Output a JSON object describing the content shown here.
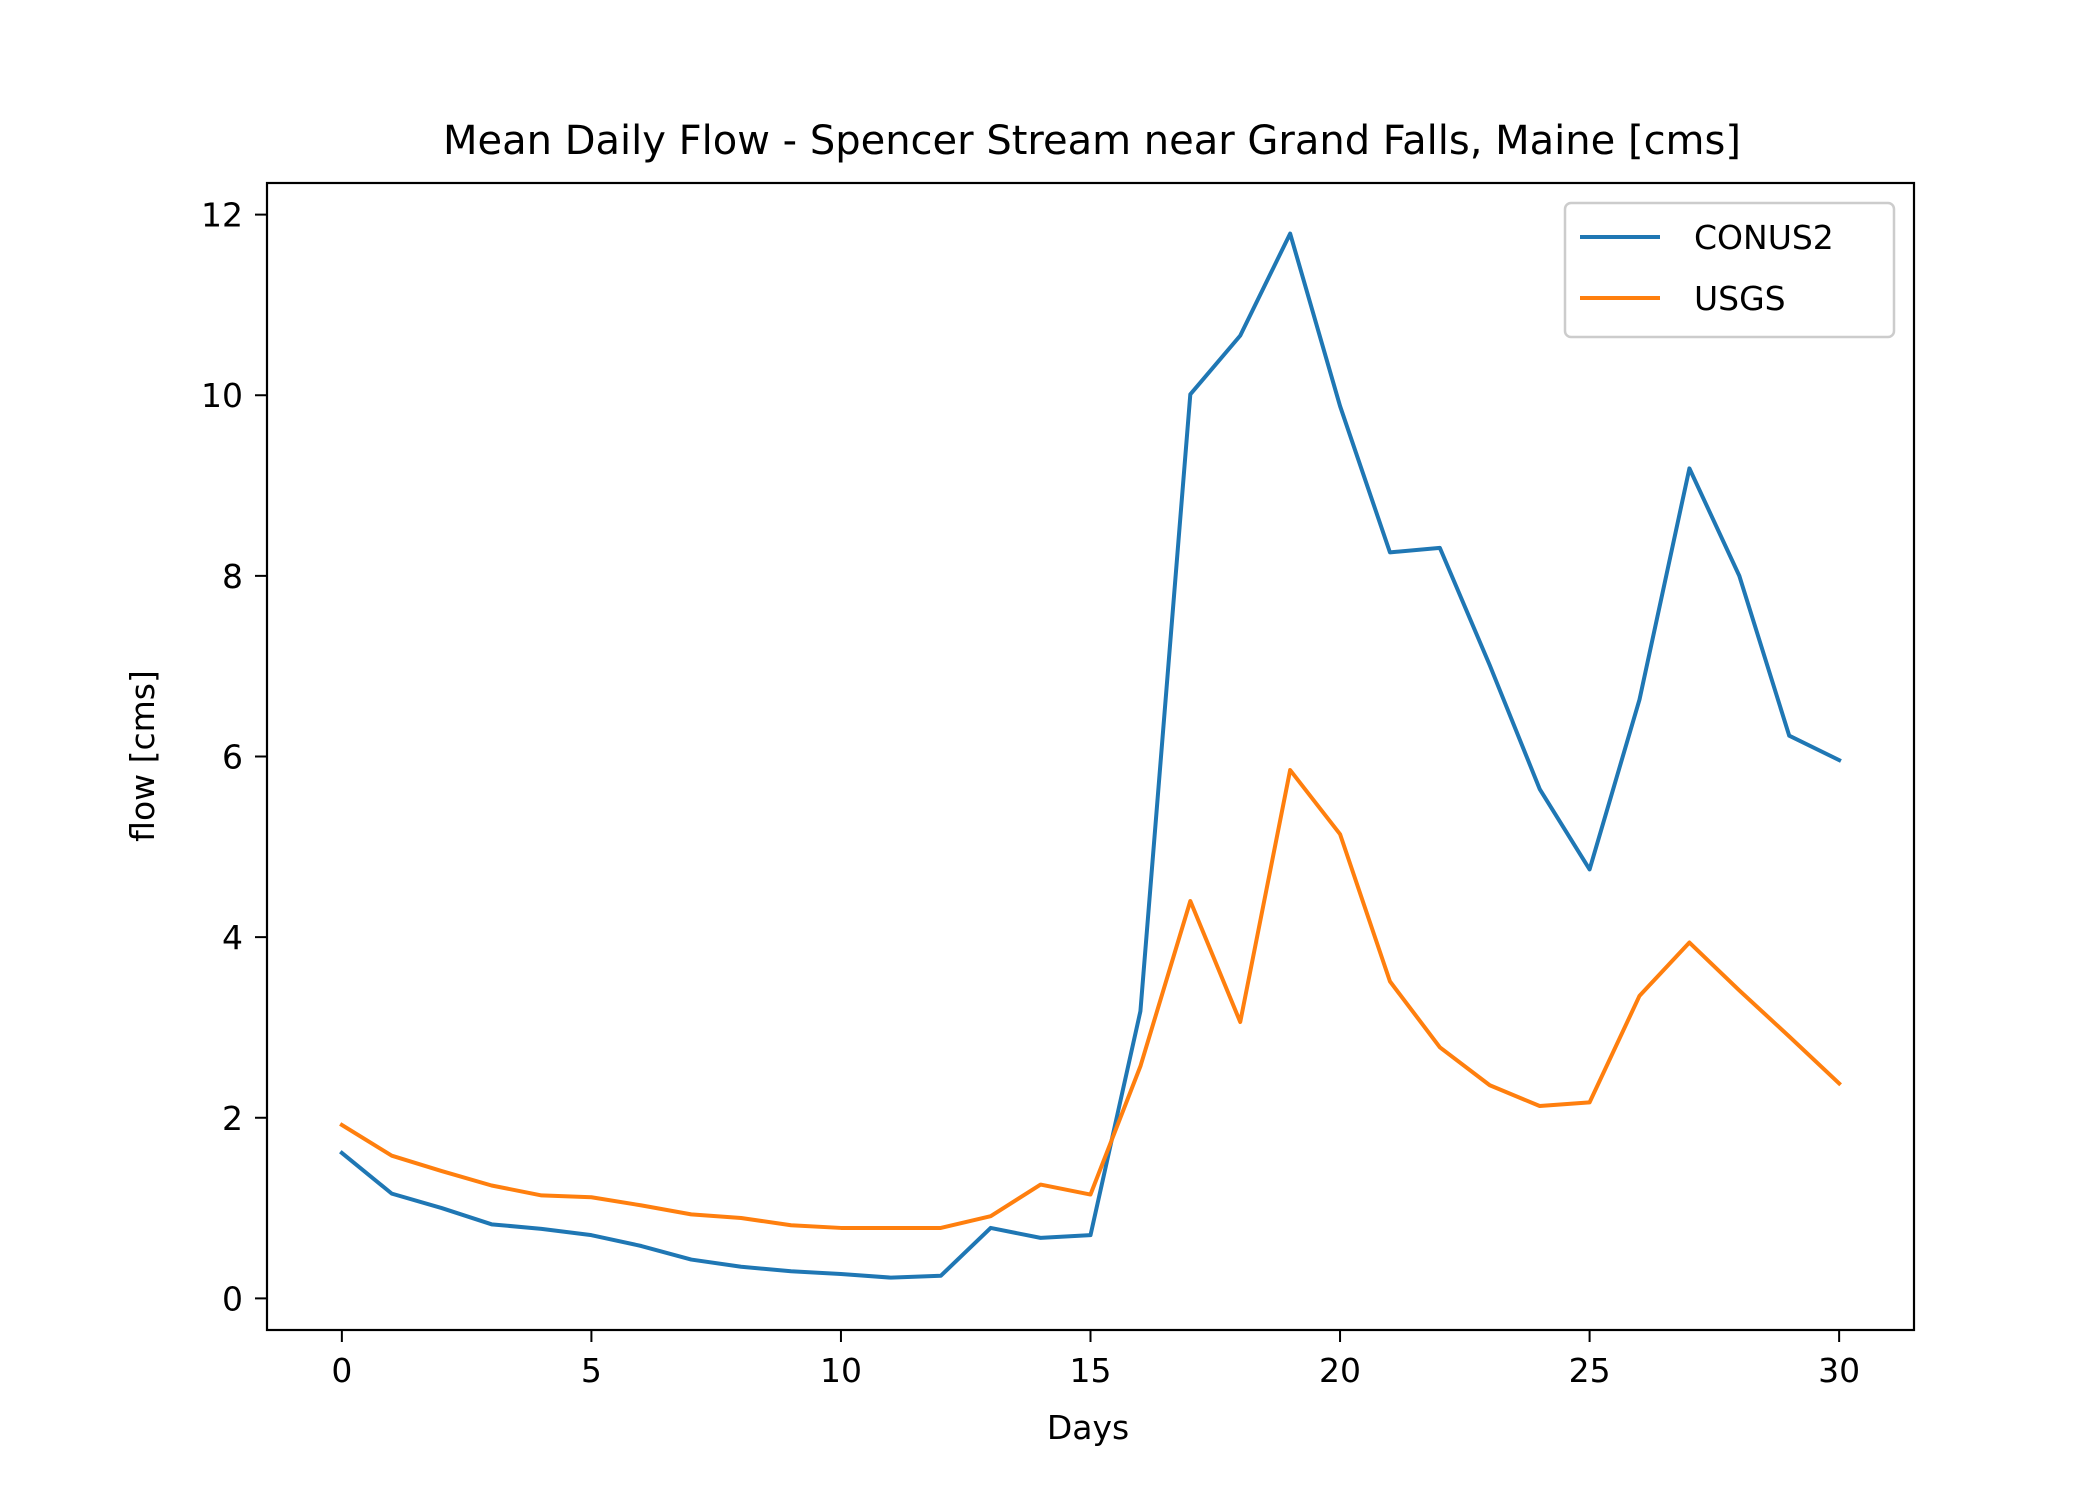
{
  "chart_data": {
    "type": "line",
    "title": "Mean Daily Flow - Spencer Stream near Grand Falls, Maine [cms]",
    "xlabel": "Days",
    "ylabel": "flow [cms]",
    "xlim": [
      -1.5,
      31.5
    ],
    "ylim": [
      -0.35,
      12.35
    ],
    "xticks": [
      0,
      5,
      10,
      15,
      20,
      25,
      30
    ],
    "yticks": [
      0,
      2,
      4,
      6,
      8,
      10,
      12
    ],
    "grid": false,
    "legend_position": "upper right",
    "x": [
      0,
      1,
      2,
      3,
      4,
      5,
      6,
      7,
      8,
      9,
      10,
      11,
      12,
      13,
      14,
      15,
      16,
      17,
      18,
      19,
      20,
      21,
      22,
      23,
      24,
      25,
      26,
      27,
      28,
      29,
      30
    ],
    "series": [
      {
        "name": "CONUS2",
        "color": "#1f77b4",
        "values": [
          1.61,
          1.16,
          1.0,
          0.82,
          0.77,
          0.7,
          0.58,
          0.43,
          0.35,
          0.3,
          0.27,
          0.23,
          0.25,
          0.78,
          0.67,
          0.7,
          3.18,
          10.01,
          10.66,
          11.79,
          9.88,
          8.26,
          8.31,
          7.01,
          5.64,
          4.75,
          6.63,
          9.19,
          8.0,
          6.23,
          5.96
        ]
      },
      {
        "name": "USGS",
        "color": "#ff7f0e",
        "values": [
          1.92,
          1.58,
          1.41,
          1.25,
          1.14,
          1.12,
          1.03,
          0.93,
          0.89,
          0.81,
          0.78,
          0.78,
          0.78,
          0.91,
          1.26,
          1.15,
          2.57,
          4.4,
          3.06,
          5.85,
          5.14,
          3.51,
          2.78,
          2.36,
          2.13,
          2.17,
          3.35,
          3.94,
          3.41,
          2.9,
          2.38
        ]
      }
    ]
  }
}
